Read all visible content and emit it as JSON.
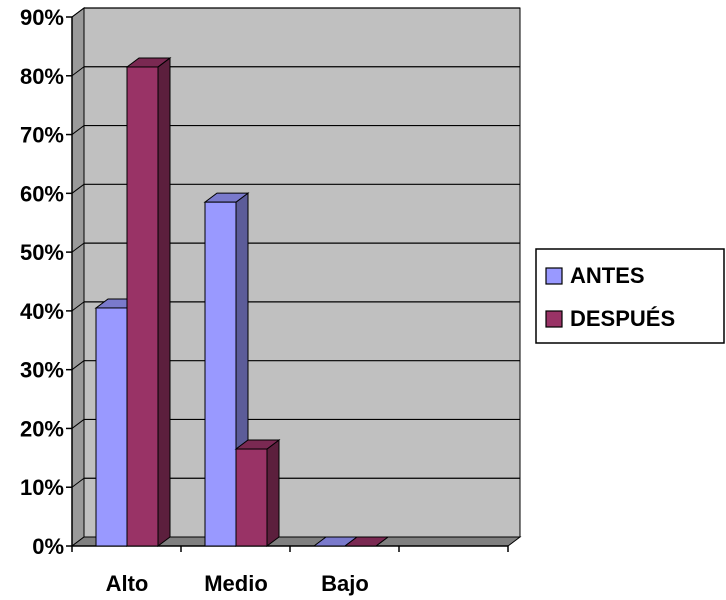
{
  "chart_data": {
    "type": "bar",
    "categories": [
      "Alto",
      "Medio",
      "Bajo"
    ],
    "series": [
      {
        "name": "ANTES",
        "values": [
          40.5,
          58.5,
          0
        ],
        "color": "#9999ff",
        "side_color": "#5c5c99",
        "top_color": "#7a7acc"
      },
      {
        "name": "DESPUÉS",
        "values": [
          81.5,
          16.5,
          0
        ],
        "color": "#993366",
        "side_color": "#5c1f3d",
        "top_color": "#7a2952"
      }
    ],
    "y_ticks": [
      "0%",
      "10%",
      "20%",
      "30%",
      "40%",
      "50%",
      "60%",
      "70%",
      "80%",
      "90%"
    ],
    "ylim": [
      0,
      90
    ],
    "grid": true,
    "legend": "right",
    "plot_background": "#c0c0c0"
  }
}
